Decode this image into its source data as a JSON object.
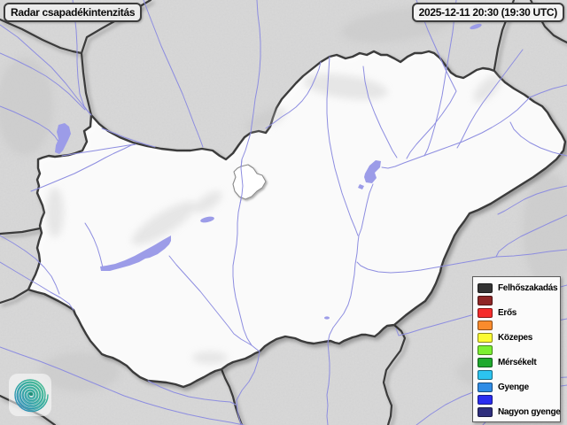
{
  "header": {
    "title": "Radar csapadékintenzitás",
    "timestamp": "2025-12-11 20:30 (19:30 UTC)"
  },
  "legend": {
    "items": [
      {
        "label": "Felhőszakadás",
        "color": "#333333"
      },
      {
        "label": "",
        "color": "#8f2727"
      },
      {
        "label": "Erős",
        "color": "#f52c2c"
      },
      {
        "label": "",
        "color": "#fa8b2d"
      },
      {
        "label": "Közepes",
        "color": "#fbfb33"
      },
      {
        "label": "",
        "color": "#7cf032"
      },
      {
        "label": "Mérsékelt",
        "color": "#1fa92e"
      },
      {
        "label": "",
        "color": "#2cc4f0"
      },
      {
        "label": "Gyenge",
        "color": "#2f8ce6"
      },
      {
        "label": "",
        "color": "#2a2cf0"
      },
      {
        "label": "Nagyon gyenge",
        "color": "#2e2e7d"
      }
    ]
  },
  "logo": {
    "name": "hungaromet-spiral-logo"
  },
  "palette": {
    "map_outside": "#d9d9d9",
    "map_land": "#ffffff",
    "map_border": "#3b3b3b",
    "map_river": "#8d8de0",
    "map_lake": "#9c9ce8",
    "box_border": "#3d3d3d",
    "box_bg": "#ececec",
    "box_bg2": "#f3f3f3",
    "legend_bg": "#fbfbfb",
    "logo_green": "#45c08a",
    "logo_teal": "#2aa3a0",
    "logo_blue": "#2f86c4"
  }
}
